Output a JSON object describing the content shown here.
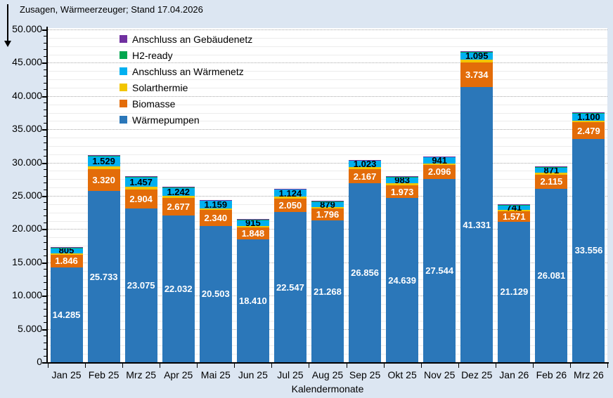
{
  "header": {
    "title": "Zusagen, Wärmeerzeuger; Stand 17.04.2026"
  },
  "chart_data": {
    "type": "bar",
    "stacked": true,
    "title": "Zusagen, Wärmeerzeuger; Stand 17.04.2026",
    "xlabel": "Kalendermonate",
    "ylabel": "",
    "ylim": [
      0,
      50000
    ],
    "y_major_step": 5000,
    "y_minor_grid_step": 1250,
    "y_minor_tick_step": 1000,
    "number_format": "de-DE thousands with dot",
    "grid": true,
    "legend_position": "inside-top-left",
    "plot_bg": "#FFFFFF",
    "page_bg": "#DCE6F2",
    "categories": [
      "Jan 25",
      "Feb 25",
      "Mrz 25",
      "Apr 25",
      "Mai 25",
      "Jun 25",
      "Jul 25",
      "Aug 25",
      "Sep 25",
      "Okt 25",
      "Nov 25",
      "Dez 25",
      "Jan 26",
      "Feb 26",
      "Mrz 26"
    ],
    "series": [
      {
        "name": "Wärmepumpen",
        "color": "#2B77B9",
        "label_color": "#FFFFFF",
        "labels_visible": true,
        "values": [
          14285,
          25733,
          23075,
          22032,
          20503,
          18410,
          22547,
          21268,
          26856,
          24639,
          27544,
          41331,
          21129,
          26081,
          33556
        ]
      },
      {
        "name": "Biomasse",
        "color": "#E36C09",
        "label_color": "#FFFFFF",
        "labels_visible": true,
        "values": [
          1846,
          3320,
          2904,
          2677,
          2340,
          1848,
          2050,
          1796,
          2167,
          1973,
          2096,
          3734,
          1571,
          2115,
          2479
        ]
      },
      {
        "name": "Solarthermie",
        "color": "#F2C500",
        "labels_visible": false,
        "estimated": true,
        "values": [
          250,
          420,
          350,
          300,
          280,
          230,
          250,
          220,
          260,
          240,
          250,
          420,
          200,
          250,
          300
        ]
      },
      {
        "name": "Anschluss an Wärmenetz",
        "color": "#00B0F0",
        "label_color": "#000000",
        "labels_visible": true,
        "values": [
          805,
          1529,
          1457,
          1242,
          1159,
          915,
          1124,
          879,
          1023,
          983,
          941,
          1095,
          741,
          871,
          1100
        ]
      },
      {
        "name": "H2-ready",
        "color": "#00A64F",
        "labels_visible": false,
        "estimated": true,
        "values": [
          40,
          60,
          50,
          50,
          40,
          40,
          40,
          40,
          40,
          40,
          40,
          80,
          40,
          40,
          50
        ]
      },
      {
        "name": "Anschluss an Gebäudenetz",
        "color": "#7030A0",
        "labels_visible": false,
        "estimated": true,
        "values": [
          60,
          90,
          80,
          70,
          70,
          60,
          60,
          60,
          60,
          60,
          60,
          120,
          60,
          60,
          80
        ]
      }
    ],
    "legend_order": [
      "Anschluss an Gebäudenetz",
      "H2-ready",
      "Anschluss an Wärmenetz",
      "Solarthermie",
      "Biomasse",
      "Wärmepumpen"
    ],
    "unlabeled_segments_note": "Solarthermie, H2-ready and Anschluss an Gebäudenetz appear only as thin unlabeled slivers; their values are estimated from pixel heights."
  }
}
